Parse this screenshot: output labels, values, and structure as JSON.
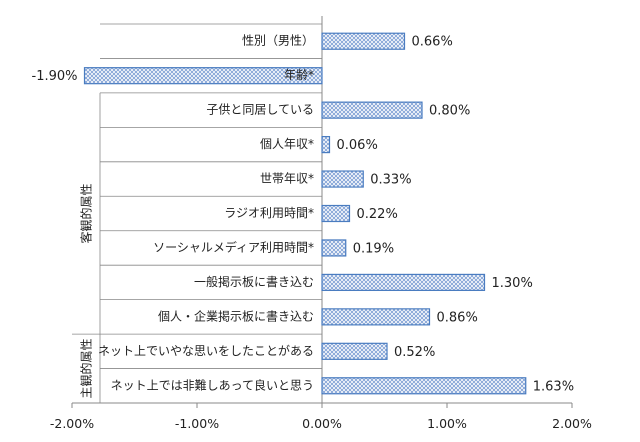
{
  "chart_data": {
    "type": "bar",
    "orientation": "horizontal",
    "categories": [
      "性別（男性）",
      "年齢*",
      "子供と同居している",
      "個人年収*",
      "世帯年収*",
      "ラジオ利用時間*",
      "ソーシャルメディア利用時間*",
      "一般掲示板に書き込む",
      "個人・企業掲示板に書き込む",
      "ネット上でいやな思いをしたことがある",
      "ネット上では非難しあって良いと思う"
    ],
    "values": [
      0.66,
      -1.9,
      0.8,
      0.06,
      0.33,
      0.22,
      0.19,
      1.3,
      0.86,
      0.52,
      1.63
    ],
    "value_labels": [
      "0.66%",
      "-1.90%",
      "0.80%",
      "0.06%",
      "0.33%",
      "0.22%",
      "0.19%",
      "1.30%",
      "0.86%",
      "0.52%",
      "1.63%"
    ],
    "xlim": [
      -2.0,
      2.0
    ],
    "x_ticks": [
      -2.0,
      -1.0,
      0.0,
      1.0,
      2.0
    ],
    "x_tick_labels": [
      "-2.00%",
      "-1.00%",
      "0.00%",
      "1.00%",
      "2.00%"
    ],
    "groups": [
      {
        "label": "客観的属性",
        "first": 0,
        "last": 8
      },
      {
        "label": "主観的属性",
        "first": 9,
        "last": 10
      }
    ],
    "grid": false,
    "bar_fill": "#c6d7ef",
    "bar_stroke": "#4a7cc0",
    "title": "",
    "xlabel": "",
    "ylabel": ""
  }
}
